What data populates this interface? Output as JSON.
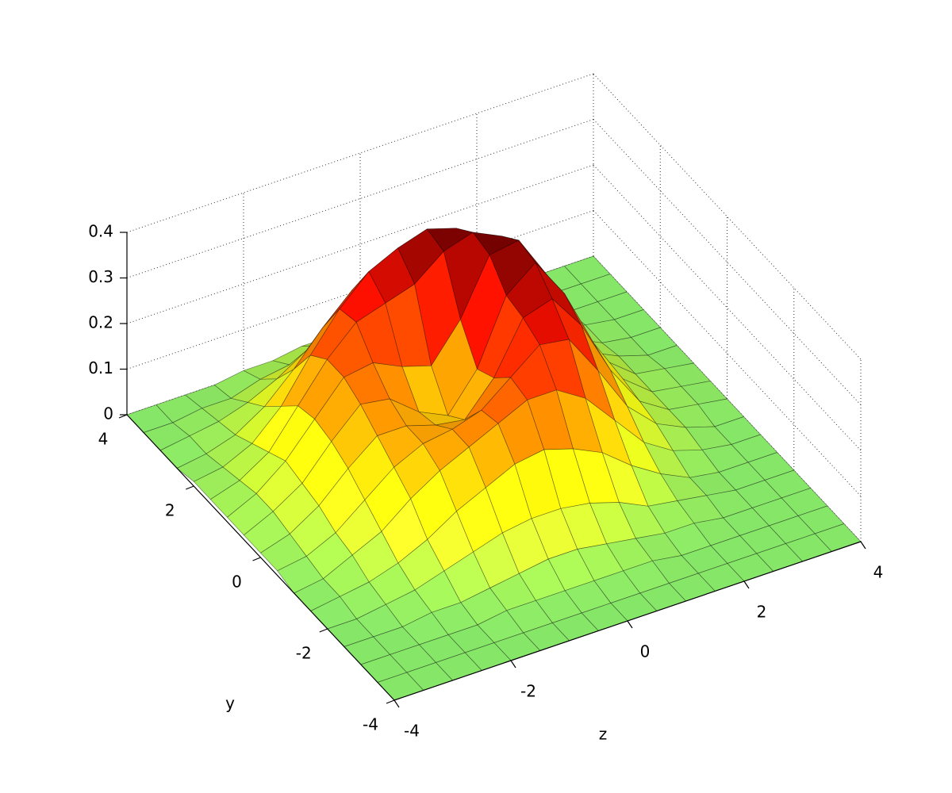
{
  "chart_data": {
    "type": "surface",
    "xlabel": "z",
    "ylabel": "y",
    "x": [
      -4,
      -3.5,
      -3,
      -2.5,
      -2,
      -1.5,
      -1,
      -0.5,
      0,
      0.5,
      1,
      1.5,
      2,
      2.5,
      3,
      3.5,
      4
    ],
    "y": [
      -4,
      -3.5,
      -3,
      -2.5,
      -2,
      -1.5,
      -1,
      -0.5,
      0,
      0.5,
      1,
      1.5,
      2,
      2.5,
      3,
      3.5,
      4
    ],
    "z": [
      [
        0,
        0,
        0,
        0,
        0,
        0,
        0,
        0,
        0,
        0,
        0,
        0,
        0,
        0,
        0,
        0,
        0
      ],
      [
        0,
        0,
        0,
        0,
        0,
        0,
        0,
        0,
        0,
        0,
        0,
        0,
        0,
        0,
        0,
        0,
        0
      ],
      [
        0,
        0,
        0,
        0,
        0,
        0.01,
        0.01,
        0.01,
        0.01,
        0.01,
        0.01,
        0,
        0,
        0,
        0,
        0,
        0
      ],
      [
        0,
        0,
        0,
        0.01,
        0.01,
        0.02,
        0.03,
        0.04,
        0.04,
        0.03,
        0.02,
        0.01,
        0.01,
        0,
        0,
        0,
        0
      ],
      [
        0,
        0,
        0.01,
        0.02,
        0.04,
        0.06,
        0.08,
        0.09,
        0.09,
        0.08,
        0.06,
        0.03,
        0.02,
        0.01,
        0,
        0,
        0
      ],
      [
        0,
        0.01,
        0.02,
        0.04,
        0.07,
        0.11,
        0.14,
        0.17,
        0.18,
        0.16,
        0.13,
        0.08,
        0.04,
        0.01,
        0,
        0,
        0
      ],
      [
        0,
        0.01,
        0.04,
        0.07,
        0.12,
        0.16,
        0.19,
        0.22,
        0.25,
        0.25,
        0.21,
        0.14,
        0.07,
        0.03,
        0.01,
        0,
        0
      ],
      [
        0.01,
        0.02,
        0.05,
        0.1,
        0.15,
        0.18,
        0.19,
        0.21,
        0.26,
        0.31,
        0.3,
        0.21,
        0.11,
        0.05,
        0.02,
        0,
        0
      ],
      [
        0.01,
        0.03,
        0.07,
        0.13,
        0.18,
        0.18,
        0.16,
        0.15,
        0.22,
        0.33,
        0.35,
        0.27,
        0.15,
        0.06,
        0.02,
        0.01,
        0
      ],
      [
        0.01,
        0.04,
        0.08,
        0.15,
        0.21,
        0.2,
        0.15,
        0.12,
        0.2,
        0.34,
        0.39,
        0.3,
        0.17,
        0.07,
        0.02,
        0.01,
        0
      ],
      [
        0.01,
        0.04,
        0.09,
        0.16,
        0.23,
        0.24,
        0.21,
        0.19,
        0.27,
        0.39,
        0.4,
        0.3,
        0.16,
        0.07,
        0.02,
        0.01,
        0
      ],
      [
        0.01,
        0.03,
        0.07,
        0.15,
        0.23,
        0.29,
        0.31,
        0.33,
        0.38,
        0.4,
        0.37,
        0.26,
        0.13,
        0.05,
        0.02,
        0,
        0
      ],
      [
        0.01,
        0.02,
        0.05,
        0.11,
        0.2,
        0.28,
        0.34,
        0.37,
        0.39,
        0.37,
        0.29,
        0.18,
        0.09,
        0.04,
        0.01,
        0,
        0
      ],
      [
        0,
        0.01,
        0.03,
        0.07,
        0.13,
        0.2,
        0.26,
        0.29,
        0.29,
        0.25,
        0.18,
        0.11,
        0.05,
        0.02,
        0.01,
        0,
        0
      ],
      [
        0,
        0.01,
        0.02,
        0.04,
        0.07,
        0.11,
        0.14,
        0.16,
        0.16,
        0.13,
        0.09,
        0.05,
        0.02,
        0.01,
        0,
        0,
        0
      ],
      [
        0,
        0,
        0.01,
        0.01,
        0.03,
        0.04,
        0.06,
        0.07,
        0.07,
        0.05,
        0.03,
        0.02,
        0.01,
        0,
        0,
        0,
        0
      ],
      [
        0,
        0,
        0,
        0,
        0.01,
        0.01,
        0.02,
        0.02,
        0.02,
        0.02,
        0.01,
        0.01,
        0,
        0,
        0,
        0,
        0
      ]
    ],
    "xlim": [
      -4,
      4
    ],
    "ylim": [
      -4,
      4
    ],
    "zlim": [
      0,
      0.4
    ],
    "xticks": [
      -4,
      -2,
      0,
      2,
      4
    ],
    "yticks": [
      -4,
      -2,
      0,
      2,
      4
    ],
    "zticks": [
      0,
      0.1,
      0.2,
      0.3,
      0.4
    ],
    "grid": true,
    "colormap": [
      "#86e668",
      "#ffff10",
      "#ff8a00",
      "#f01000",
      "#6a0000"
    ]
  }
}
